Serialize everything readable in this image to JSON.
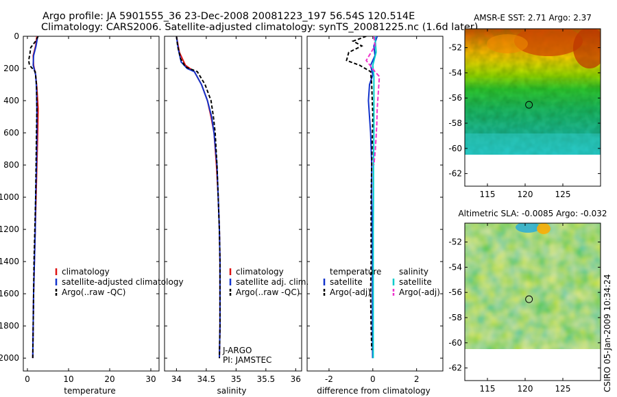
{
  "header": {
    "line1": "Argo profile: JA 5901555_36 23-Dec-2008 20081223_197 56.54S 120.514E",
    "line2": "Climatology: CARS2006. Satellite-adjusted climatology: synTS_20081225.nc (1.6d later)"
  },
  "watermark": "CSIRO 05-Jan-2009 10:34:24",
  "chart_data": [
    {
      "type": "line",
      "xlabel": "temperature",
      "xlim": [
        -1,
        32
      ],
      "xticks": [
        0,
        10,
        20,
        30
      ],
      "ylim": [
        2080,
        0
      ],
      "yticks": [
        0,
        200,
        400,
        600,
        800,
        1000,
        1200,
        1400,
        1600,
        1800,
        2000
      ],
      "legend": {
        "placement": "lower-right",
        "entries": [
          "climatology",
          "satellite-adjusted climatology",
          "Argo(..raw -QC)"
        ]
      },
      "series": [
        {
          "name": "climatology",
          "color": "#dd1111",
          "dash": "",
          "points": [
            [
              2.3,
              0
            ],
            [
              2.0,
              60
            ],
            [
              1.4,
              120
            ],
            [
              1.5,
              180
            ],
            [
              2.0,
              240
            ],
            [
              2.3,
              320
            ],
            [
              2.6,
              450
            ],
            [
              2.5,
              600
            ],
            [
              2.3,
              800
            ],
            [
              2.1,
              1000
            ],
            [
              1.9,
              1200
            ],
            [
              1.7,
              1400
            ],
            [
              1.5,
              1600
            ],
            [
              1.4,
              1800
            ],
            [
              1.3,
              2000
            ]
          ]
        },
        {
          "name": "satellite-adjusted climatology",
          "color": "#1133cc",
          "dash": "",
          "points": [
            [
              2.5,
              0
            ],
            [
              2.1,
              60
            ],
            [
              1.5,
              120
            ],
            [
              1.4,
              180
            ],
            [
              2.0,
              240
            ],
            [
              2.2,
              320
            ],
            [
              2.3,
              450
            ],
            [
              2.3,
              600
            ],
            [
              2.2,
              800
            ],
            [
              2.0,
              1000
            ],
            [
              1.9,
              1200
            ],
            [
              1.7,
              1400
            ],
            [
              1.5,
              1600
            ],
            [
              1.4,
              1800
            ],
            [
              1.3,
              2000
            ]
          ]
        },
        {
          "name": "Argo(..raw -QC)",
          "color": "#000000",
          "dash": "5,3",
          "points": [
            [
              2.6,
              0
            ],
            [
              2.0,
              30
            ],
            [
              0.8,
              70
            ],
            [
              0.6,
              110
            ],
            [
              0.3,
              150
            ],
            [
              0.5,
              180
            ],
            [
              1.9,
              220
            ],
            [
              2.2,
              300
            ],
            [
              2.3,
              450
            ],
            [
              2.2,
              600
            ],
            [
              2.1,
              800
            ],
            [
              2.0,
              1000
            ],
            [
              1.8,
              1200
            ],
            [
              1.6,
              1400
            ],
            [
              1.5,
              1600
            ],
            [
              1.4,
              1800
            ],
            [
              1.3,
              2000
            ]
          ]
        }
      ]
    },
    {
      "type": "line",
      "xlabel": "salinity",
      "xlim": [
        33.8,
        36.1
      ],
      "xticks": [
        34,
        34.5,
        35,
        35.5,
        36
      ],
      "ylim": [
        2080,
        0
      ],
      "legend": {
        "placement": "lower-right",
        "entries": [
          "climatology",
          "satellite adj. clim.",
          "Argo(..raw -QC)"
        ]
      },
      "annotations": [
        "J-ARGO",
        "PI: JAMSTEC"
      ],
      "series": [
        {
          "name": "climatology",
          "color": "#dd1111",
          "dash": "",
          "points": [
            [
              34.0,
              0
            ],
            [
              34.05,
              100
            ],
            [
              34.15,
              180
            ],
            [
              34.3,
              220
            ],
            [
              34.42,
              300
            ],
            [
              34.52,
              400
            ],
            [
              34.58,
              500
            ],
            [
              34.63,
              600
            ],
            [
              34.67,
              800
            ],
            [
              34.7,
              1000
            ],
            [
              34.72,
              1200
            ],
            [
              34.73,
              1400
            ],
            [
              34.73,
              1600
            ],
            [
              34.73,
              1800
            ],
            [
              34.72,
              2000
            ]
          ]
        },
        {
          "name": "satellite adj. clim.",
          "color": "#1133cc",
          "dash": "",
          "points": [
            [
              34.0,
              0
            ],
            [
              34.03,
              80
            ],
            [
              34.08,
              160
            ],
            [
              34.18,
              200
            ],
            [
              34.3,
              220
            ],
            [
              34.42,
              300
            ],
            [
              34.52,
              400
            ],
            [
              34.59,
              500
            ],
            [
              34.63,
              600
            ],
            [
              34.68,
              800
            ],
            [
              34.7,
              1000
            ],
            [
              34.72,
              1200
            ],
            [
              34.73,
              1400
            ],
            [
              34.73,
              1600
            ],
            [
              34.73,
              1800
            ],
            [
              34.72,
              2000
            ]
          ]
        },
        {
          "name": "Argo(..raw -QC)",
          "color": "#000000",
          "dash": "5,3",
          "points": [
            [
              34.0,
              0
            ],
            [
              34.02,
              60
            ],
            [
              34.07,
              140
            ],
            [
              34.15,
              190
            ],
            [
              34.35,
              220
            ],
            [
              34.48,
              300
            ],
            [
              34.58,
              400
            ],
            [
              34.62,
              500
            ],
            [
              34.65,
              600
            ],
            [
              34.68,
              800
            ],
            [
              34.7,
              1000
            ],
            [
              34.72,
              1200
            ],
            [
              34.73,
              1400
            ],
            [
              34.73,
              1600
            ],
            [
              34.73,
              1800
            ],
            [
              34.72,
              2000
            ]
          ]
        }
      ]
    },
    {
      "type": "line",
      "xlabel": "difference from climatology",
      "xlim": [
        -3,
        3.2
      ],
      "xticks": [
        -2,
        0,
        2
      ],
      "ylim": [
        2080,
        0
      ],
      "legend": {
        "placement": "lower-center",
        "groups": [
          {
            "title": "temperature",
            "entries": [
              "satellite",
              "Argo(-adj)"
            ]
          },
          {
            "title": "salinity",
            "entries": [
              "satellite",
              "Argo(-adj)"
            ]
          }
        ]
      },
      "series": [
        {
          "name": "temperature satellite",
          "color": "#1133cc",
          "dash": "",
          "points": [
            [
              0.2,
              0
            ],
            [
              0.05,
              60
            ],
            [
              0.1,
              120
            ],
            [
              -0.1,
              180
            ],
            [
              0.0,
              240
            ],
            [
              -0.15,
              300
            ],
            [
              -0.2,
              400
            ],
            [
              -0.15,
              500
            ],
            [
              -0.1,
              600
            ],
            [
              -0.05,
              800
            ],
            [
              -0.05,
              1000
            ],
            [
              -0.03,
              1200
            ],
            [
              -0.02,
              1400
            ],
            [
              -0.02,
              1600
            ],
            [
              -0.02,
              1800
            ],
            [
              -0.01,
              2000
            ]
          ]
        },
        {
          "name": "temperature Argo(-adj)",
          "color": "#000000",
          "dash": "5,3",
          "points": [
            [
              -0.3,
              0
            ],
            [
              -0.9,
              30
            ],
            [
              -0.5,
              60
            ],
            [
              -1.1,
              100
            ],
            [
              -1.2,
              150
            ],
            [
              -0.6,
              180
            ],
            [
              -0.1,
              220
            ],
            [
              -0.05,
              300
            ],
            [
              0.0,
              500
            ],
            [
              -0.05,
              800
            ],
            [
              -0.08,
              1000
            ],
            [
              -0.08,
              1200
            ],
            [
              -0.08,
              1400
            ],
            [
              -0.1,
              1600
            ],
            [
              -0.08,
              1800
            ],
            [
              -0.05,
              1950
            ]
          ]
        },
        {
          "name": "salinity satellite",
          "color": "#00cccc",
          "dash": "",
          "points": [
            [
              0.1,
              0
            ],
            [
              0.15,
              100
            ],
            [
              0.0,
              180
            ],
            [
              0.05,
              250
            ],
            [
              0.05,
              400
            ],
            [
              0.05,
              600
            ],
            [
              0.03,
              800
            ],
            [
              0.03,
              1000
            ],
            [
              0.02,
              1200
            ],
            [
              0.02,
              1400
            ],
            [
              0.02,
              1600
            ],
            [
              0.02,
              1800
            ],
            [
              0.02,
              2000
            ]
          ]
        },
        {
          "name": "salinity Argo(-adj)",
          "color": "#ee33cc",
          "dash": "6,3",
          "points": [
            [
              0.05,
              0
            ],
            [
              0.1,
              60
            ],
            [
              -0.3,
              150
            ],
            [
              0.1,
              220
            ],
            [
              0.3,
              250
            ],
            [
              0.25,
              350
            ],
            [
              0.2,
              450
            ],
            [
              0.18,
              550
            ],
            [
              0.12,
              700
            ],
            [
              0.05,
              800
            ]
          ]
        }
      ]
    },
    {
      "type": "heatmap",
      "title": "AMSR-E SST: 2.71 Argo: 2.37",
      "xlim": [
        112,
        130
      ],
      "ylim": [
        -63,
        -50.5
      ],
      "xticks": [
        115,
        120,
        125
      ],
      "yticks": [
        -52,
        -54,
        -56,
        -58,
        -60,
        -62
      ],
      "marker": [
        120.514,
        -56.54
      ],
      "colormap": "jet"
    },
    {
      "type": "heatmap",
      "title": "Altimetric SLA: -0.0085 Argo: -0.032",
      "xlim": [
        112,
        130
      ],
      "ylim": [
        -63,
        -50.5
      ],
      "xticks": [
        115,
        120,
        125
      ],
      "yticks": [
        -52,
        -54,
        -56,
        -58,
        -60,
        -62
      ],
      "marker": [
        120.514,
        -56.54
      ],
      "colormap": "jet"
    }
  ]
}
